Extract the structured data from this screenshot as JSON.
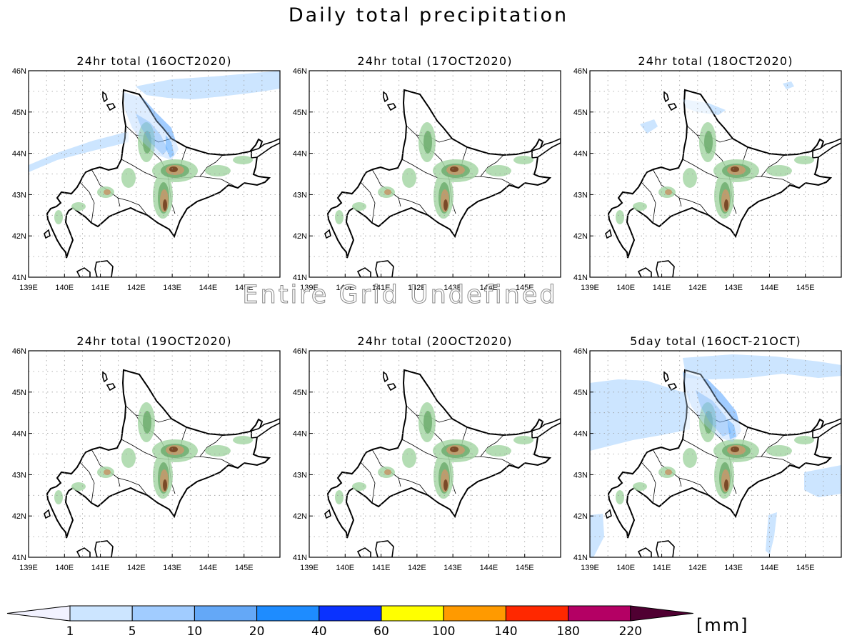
{
  "title": "Daily total precipitation",
  "overlay_text": "Entire Grid Undefined",
  "units_label": "[mm]",
  "map": {
    "lon_ticks": [
      "139E",
      "140E",
      "141E",
      "142E",
      "143E",
      "144E",
      "145E"
    ],
    "lat_ticks": [
      "41N",
      "42N",
      "43N",
      "44N",
      "45N",
      "46N"
    ],
    "lon_range": [
      139,
      146
    ],
    "lat_range": [
      41,
      46
    ]
  },
  "panels": [
    {
      "title": "24hr total (16OCT2020)",
      "precip": "moderate"
    },
    {
      "title": "24hr total (17OCT2020)",
      "precip": "none"
    },
    {
      "title": "24hr total (18OCT2020)",
      "precip": "light"
    },
    {
      "title": "24hr total (19OCT2020)",
      "precip": "none"
    },
    {
      "title": "24hr total (20OCT2020)",
      "precip": "none"
    },
    {
      "title": "5day total (16OCT-21OCT)",
      "precip": "heavy"
    }
  ],
  "colorbar": {
    "labels": [
      "1",
      "5",
      "10",
      "20",
      "40",
      "60",
      "100",
      "140",
      "180",
      "220"
    ],
    "colors": [
      "#f2f2ff",
      "#cce5ff",
      "#a1ccff",
      "#64a8f7",
      "#1e8cff",
      "#0a32ff",
      "#ffff00",
      "#ff9a00",
      "#ff2800",
      "#b40064",
      "#500032"
    ]
  }
}
